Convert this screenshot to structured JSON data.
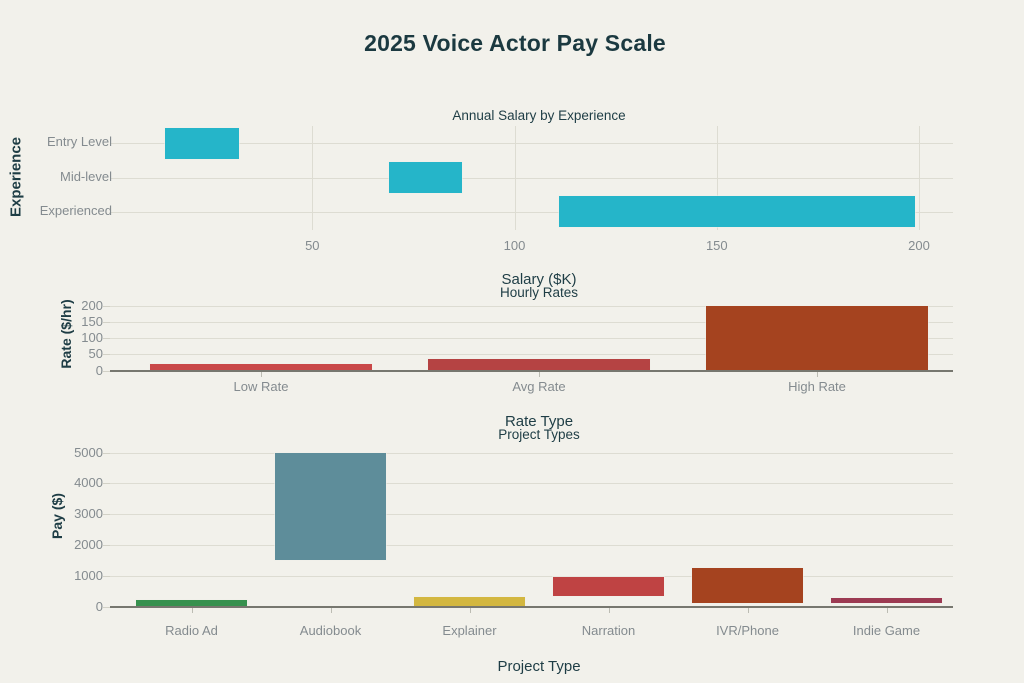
{
  "page": {
    "title": "2025 Voice Actor Pay Scale"
  },
  "style": {
    "background": "#f2f1eb",
    "title_color": "#1b3940",
    "dark_text_color": "#1e3d45",
    "muted_text_color": "#848b8f",
    "grid_color": "#dddcd2",
    "axis_line_color": "#77776f"
  },
  "chart_data": [
    {
      "type": "bar",
      "orientation": "horizontal",
      "title": "Annual Salary by Experience",
      "xlabel": "Salary ($K)",
      "ylabel": "Experience",
      "categories": [
        "Entry Level",
        "Mid-level",
        "Experienced"
      ],
      "ranges": [
        [
          13.5,
          32
        ],
        [
          69,
          87
        ],
        [
          111,
          199
        ]
      ],
      "bar_colors": [
        "#25b5c9",
        "#25b5c9",
        "#25b5c9"
      ],
      "xlim": [
        0,
        208.4
      ],
      "xticks": [
        50,
        100,
        150,
        200
      ],
      "grid": true,
      "legend": false
    },
    {
      "type": "bar",
      "orientation": "vertical",
      "title": "Hourly Rates",
      "xlabel": "Rate Type",
      "ylabel": "Rate ($/hr)",
      "categories": [
        "Low Rate",
        "Avg Rate",
        "High Rate"
      ],
      "values": [
        20,
        35,
        200
      ],
      "bar_colors": [
        "#c94848",
        "#b54343",
        "#a5431f"
      ],
      "ylim": [
        0,
        225
      ],
      "yticks": [
        0,
        50,
        100,
        150,
        200
      ],
      "grid": true,
      "legend": false
    },
    {
      "type": "bar",
      "orientation": "vertical",
      "title": "Project Types",
      "xlabel": "Project Type",
      "ylabel": "Pay ($)",
      "categories": [
        "Radio Ad",
        "Audiobook",
        "Explainer",
        "Narration",
        "IVR/Phone",
        "Indie Game"
      ],
      "ranges": [
        [
          0,
          225
        ],
        [
          1500,
          5000
        ],
        [
          0,
          300
        ],
        [
          350,
          950
        ],
        [
          100,
          1250
        ],
        [
          100,
          280
        ]
      ],
      "bar_colors": [
        "#37914e",
        "#5e8d9a",
        "#d3b740",
        "#bf4343",
        "#a5431f",
        "#9c3a52"
      ],
      "ylim": [
        0,
        5275
      ],
      "yticks": [
        0,
        1000,
        2000,
        3000,
        4000,
        5000
      ],
      "grid": true,
      "legend": false
    }
  ]
}
